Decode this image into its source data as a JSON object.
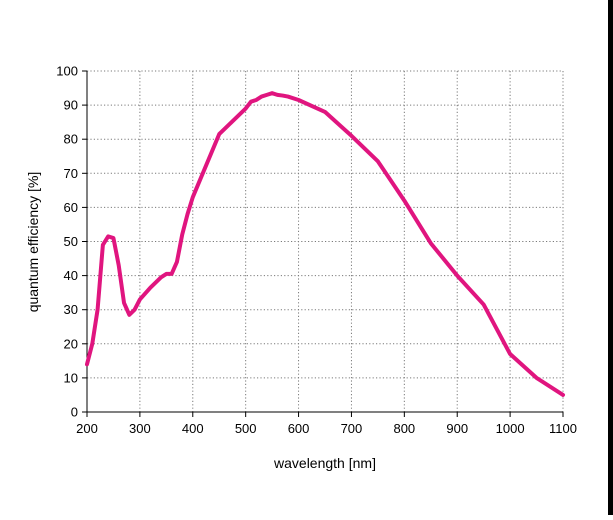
{
  "chart_data": {
    "type": "line",
    "title": "",
    "xlabel": "wavelength [nm]",
    "ylabel": "quantum efficiency [%]",
    "xlim": [
      200,
      1100
    ],
    "ylim": [
      0,
      100
    ],
    "xticks": [
      "200",
      "300",
      "400",
      "500",
      "600",
      "700",
      "800",
      "900",
      "1000",
      "1100"
    ],
    "yticks": [
      "0",
      "10",
      "20",
      "30",
      "40",
      "50",
      "60",
      "70",
      "80",
      "90",
      "100"
    ],
    "grid": true,
    "legend": "none",
    "series": [
      {
        "color": "#e0157f",
        "x": [
          200,
          210,
          220,
          230,
          240,
          250,
          260,
          270,
          280,
          290,
          300,
          320,
          340,
          350,
          360,
          370,
          380,
          390,
          400,
          450,
          500,
          510,
          520,
          530,
          540,
          550,
          560,
          570,
          580,
          600,
          650,
          700,
          750,
          800,
          850,
          900,
          950,
          1000,
          1050,
          1100
        ],
        "y": [
          14,
          20,
          30,
          49,
          51.5,
          51,
          43,
          32,
          28.5,
          30,
          33,
          36.5,
          39.5,
          40.5,
          40.5,
          44,
          52,
          58,
          63,
          81.5,
          89,
          91,
          91.5,
          92.5,
          93,
          93.5,
          93,
          92.8,
          92.5,
          91.5,
          88,
          81,
          73.5,
          62,
          49.5,
          40,
          31.5,
          17,
          10,
          5
        ]
      }
    ]
  }
}
